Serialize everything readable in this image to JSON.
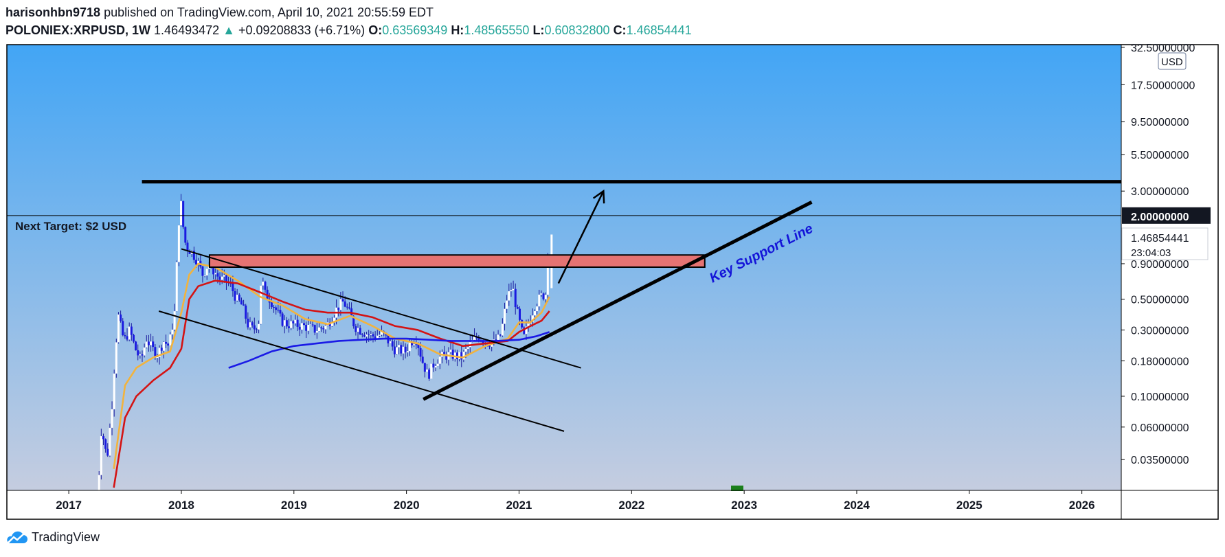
{
  "header": {
    "author": "harisonhbn9718",
    "published_text": "published on TradingView.com, April 10, 2021 20:55:59 EDT",
    "symbol": "POLONIEX:XRPUSD, 1W",
    "price": "1.46493472",
    "change_arrow": "▲",
    "change": "+0.09208833 (+6.71%)",
    "o_label": "O:",
    "o_value": "0.63569349",
    "h_label": "H:",
    "h_value": "1.48565550",
    "l_label": "L:",
    "l_value": "0.60832800",
    "c_label": "C:",
    "c_value": "1.46854441"
  },
  "footer": {
    "brand": "TradingView",
    "logo_icon": "tradingview-cloud-icon"
  },
  "colors": {
    "bg_top": "#42a5f5",
    "bg_bottom": "#c5cde0",
    "ma_fast": "#f2b33d",
    "ma_mid": "#d41313",
    "ma_slow": "#1a1ae6",
    "zone_fill": "#e57373",
    "label_blue": "#1414d8",
    "accent_green": "#1b7f1b"
  },
  "chart_data": {
    "type": "candlestick",
    "scale": "log",
    "currency_badge": "USD",
    "x_ticks": [
      "2017",
      "2018",
      "2019",
      "2020",
      "2021",
      "2022",
      "2023",
      "2024",
      "2025",
      "2026"
    ],
    "y_ticks": [
      "32.50000000",
      "17.50000000",
      "9.50000000",
      "5.50000000",
      "3.00000000",
      "0.90000000",
      "0.50000000",
      "0.30000000",
      "0.18000000",
      "0.10000000",
      "0.06000000",
      "0.03500000"
    ],
    "y_tick_values": [
      32.5,
      17.5,
      9.5,
      5.5,
      3.0,
      0.9,
      0.5,
      0.3,
      0.18,
      0.1,
      0.06,
      0.035
    ],
    "ylim": [
      0.021,
      34
    ],
    "xlim": [
      2016.45,
      2026.35
    ],
    "price_label": "1.46854441",
    "countdown": "23:04:03",
    "target_price": 2.0,
    "target_price_label": "2.00000000",
    "annotations": {
      "next_target": "Next Target: $2 USD",
      "support": "Key Support Line"
    },
    "resistance_line": {
      "price": 3.5,
      "x_start": 2017.65
    },
    "supply_zone": {
      "low": 0.85,
      "high": 1.04,
      "x_start": 2018.25,
      "x_end": 2022.65
    },
    "channel_upper": {
      "x1": 2018.0,
      "y1": 1.15,
      "x2": 2021.55,
      "y2": 0.16
    },
    "channel_lower": {
      "x1": 2017.8,
      "y1": 0.41,
      "x2": 2021.4,
      "y2": 0.056
    },
    "support_line": {
      "x1": 2020.15,
      "y1": 0.095,
      "x2": 2023.6,
      "y2": 2.5
    },
    "forecast_arrow": {
      "x1": 2021.35,
      "y1": 0.65,
      "x2": 2021.75,
      "y2": 3.0
    },
    "price_path": [
      [
        2017.25,
        0.008
      ],
      [
        2017.28,
        0.03
      ],
      [
        2017.3,
        0.06
      ],
      [
        2017.35,
        0.035
      ],
      [
        2017.4,
        0.1
      ],
      [
        2017.42,
        0.2
      ],
      [
        2017.45,
        0.38
      ],
      [
        2017.5,
        0.25
      ],
      [
        2017.55,
        0.3
      ],
      [
        2017.6,
        0.22
      ],
      [
        2017.65,
        0.18
      ],
      [
        2017.7,
        0.26
      ],
      [
        2017.75,
        0.22
      ],
      [
        2017.8,
        0.2
      ],
      [
        2017.85,
        0.25
      ],
      [
        2017.9,
        0.23
      ],
      [
        2017.95,
        0.4
      ],
      [
        2017.98,
        1.4
      ],
      [
        2018.0,
        2.8
      ],
      [
        2018.02,
        1.8
      ],
      [
        2018.05,
        1.2
      ],
      [
        2018.1,
        1.1
      ],
      [
        2018.15,
        0.95
      ],
      [
        2018.2,
        0.75
      ],
      [
        2018.25,
        0.9
      ],
      [
        2018.3,
        0.8
      ],
      [
        2018.35,
        0.7
      ],
      [
        2018.4,
        0.68
      ],
      [
        2018.45,
        0.62
      ],
      [
        2018.5,
        0.5
      ],
      [
        2018.55,
        0.45
      ],
      [
        2018.6,
        0.33
      ],
      [
        2018.65,
        0.3
      ],
      [
        2018.7,
        0.35
      ],
      [
        2018.72,
        0.75
      ],
      [
        2018.75,
        0.55
      ],
      [
        2018.8,
        0.5
      ],
      [
        2018.85,
        0.42
      ],
      [
        2018.9,
        0.35
      ],
      [
        2018.95,
        0.33
      ],
      [
        2019.0,
        0.33
      ],
      [
        2019.1,
        0.32
      ],
      [
        2019.2,
        0.3
      ],
      [
        2019.3,
        0.32
      ],
      [
        2019.4,
        0.44
      ],
      [
        2019.45,
        0.48
      ],
      [
        2019.5,
        0.4
      ],
      [
        2019.55,
        0.32
      ],
      [
        2019.6,
        0.3
      ],
      [
        2019.7,
        0.27
      ],
      [
        2019.8,
        0.28
      ],
      [
        2019.9,
        0.22
      ],
      [
        2020.0,
        0.21
      ],
      [
        2020.05,
        0.25
      ],
      [
        2020.1,
        0.26
      ],
      [
        2020.15,
        0.18
      ],
      [
        2020.2,
        0.14
      ],
      [
        2020.25,
        0.17
      ],
      [
        2020.3,
        0.19
      ],
      [
        2020.4,
        0.2
      ],
      [
        2020.5,
        0.19
      ],
      [
        2020.55,
        0.22
      ],
      [
        2020.6,
        0.25
      ],
      [
        2020.65,
        0.27
      ],
      [
        2020.7,
        0.25
      ],
      [
        2020.8,
        0.24
      ],
      [
        2020.85,
        0.28
      ],
      [
        2020.9,
        0.5
      ],
      [
        2020.95,
        0.62
      ],
      [
        2021.0,
        0.38
      ],
      [
        2021.05,
        0.26
      ],
      [
        2021.1,
        0.35
      ],
      [
        2021.15,
        0.45
      ],
      [
        2021.2,
        0.52
      ],
      [
        2021.25,
        0.55
      ],
      [
        2021.27,
        1.45
      ]
    ],
    "series": [
      {
        "name": "",
        "color_key": "ma_fast",
        "points": [
          [
            2017.4,
            0.03
          ],
          [
            2017.5,
            0.12
          ],
          [
            2017.6,
            0.16
          ],
          [
            2017.75,
            0.19
          ],
          [
            2017.9,
            0.21
          ],
          [
            2018.0,
            0.4
          ],
          [
            2018.07,
            0.75
          ],
          [
            2018.15,
            0.9
          ],
          [
            2018.3,
            0.85
          ],
          [
            2018.5,
            0.68
          ],
          [
            2018.7,
            0.52
          ],
          [
            2018.9,
            0.45
          ],
          [
            2019.1,
            0.36
          ],
          [
            2019.3,
            0.33
          ],
          [
            2019.5,
            0.38
          ],
          [
            2019.7,
            0.32
          ],
          [
            2019.9,
            0.26
          ],
          [
            2020.1,
            0.24
          ],
          [
            2020.3,
            0.2
          ],
          [
            2020.5,
            0.19
          ],
          [
            2020.7,
            0.23
          ],
          [
            2020.9,
            0.26
          ],
          [
            2021.0,
            0.34
          ],
          [
            2021.1,
            0.34
          ],
          [
            2021.2,
            0.4
          ],
          [
            2021.27,
            0.52
          ]
        ]
      },
      {
        "name": "",
        "color_key": "ma_mid",
        "points": [
          [
            2017.4,
            0.022
          ],
          [
            2017.5,
            0.07
          ],
          [
            2017.6,
            0.1
          ],
          [
            2017.75,
            0.13
          ],
          [
            2017.9,
            0.16
          ],
          [
            2018.0,
            0.22
          ],
          [
            2018.07,
            0.5
          ],
          [
            2018.15,
            0.62
          ],
          [
            2018.3,
            0.68
          ],
          [
            2018.5,
            0.65
          ],
          [
            2018.7,
            0.56
          ],
          [
            2018.9,
            0.48
          ],
          [
            2019.1,
            0.42
          ],
          [
            2019.3,
            0.4
          ],
          [
            2019.5,
            0.4
          ],
          [
            2019.7,
            0.37
          ],
          [
            2019.9,
            0.32
          ],
          [
            2020.1,
            0.3
          ],
          [
            2020.3,
            0.26
          ],
          [
            2020.5,
            0.23
          ],
          [
            2020.7,
            0.24
          ],
          [
            2020.9,
            0.25
          ],
          [
            2021.0,
            0.29
          ],
          [
            2021.1,
            0.32
          ],
          [
            2021.2,
            0.35
          ],
          [
            2021.27,
            0.41
          ]
        ]
      },
      {
        "name": "",
        "color_key": "ma_slow",
        "points": [
          [
            2018.42,
            0.16
          ],
          [
            2018.6,
            0.18
          ],
          [
            2018.8,
            0.21
          ],
          [
            2019.0,
            0.23
          ],
          [
            2019.2,
            0.24
          ],
          [
            2019.4,
            0.25
          ],
          [
            2019.6,
            0.255
          ],
          [
            2019.8,
            0.26
          ],
          [
            2020.0,
            0.26
          ],
          [
            2020.2,
            0.255
          ],
          [
            2020.4,
            0.25
          ],
          [
            2020.6,
            0.25
          ],
          [
            2020.8,
            0.25
          ],
          [
            2021.0,
            0.255
          ],
          [
            2021.15,
            0.27
          ],
          [
            2021.27,
            0.29
          ]
        ]
      }
    ]
  }
}
